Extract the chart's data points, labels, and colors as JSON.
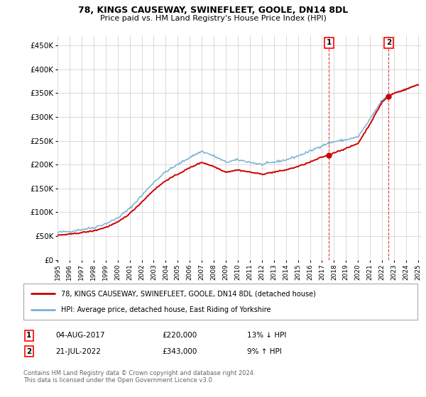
{
  "title": "78, KINGS CAUSEWAY, SWINEFLEET, GOOLE, DN14 8DL",
  "subtitle": "Price paid vs. HM Land Registry's House Price Index (HPI)",
  "ylabel_ticks": [
    "£0",
    "£50K",
    "£100K",
    "£150K",
    "£200K",
    "£250K",
    "£300K",
    "£350K",
    "£400K",
    "£450K"
  ],
  "ytick_values": [
    0,
    50000,
    100000,
    150000,
    200000,
    250000,
    300000,
    350000,
    400000,
    450000
  ],
  "ylim": [
    0,
    470000
  ],
  "year_start": 1995,
  "year_end": 2025,
  "hpi_color": "#7ab0d4",
  "price_color": "#cc0000",
  "marker1_date_label": "04-AUG-2017",
  "marker1_price": 220000,
  "marker1_pct": "13%",
  "marker1_dir": "↓",
  "marker1_year": 2017.59,
  "marker2_date_label": "21-JUL-2022",
  "marker2_price": 343000,
  "marker2_pct": "9%",
  "marker2_dir": "↑",
  "marker2_year": 2022.55,
  "legend_line1": "78, KINGS CAUSEWAY, SWINEFLEET, GOOLE, DN14 8DL (detached house)",
  "legend_line2": "HPI: Average price, detached house, East Riding of Yorkshire",
  "footnote": "Contains HM Land Registry data © Crown copyright and database right 2024.\nThis data is licensed under the Open Government Licence v3.0.",
  "background_color": "#ffffff",
  "grid_color": "#cccccc"
}
